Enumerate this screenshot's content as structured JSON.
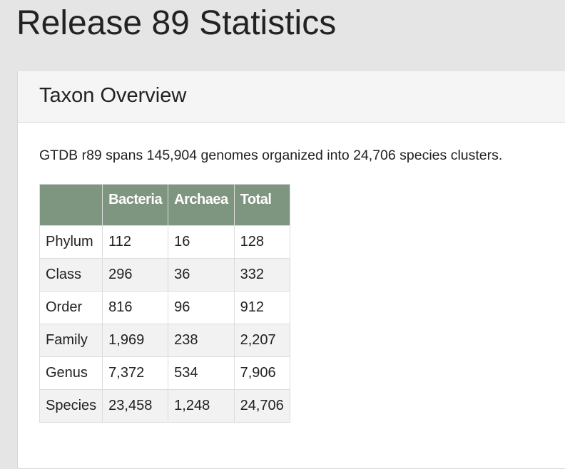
{
  "page": {
    "title": "Release 89 Statistics"
  },
  "card": {
    "title": "Taxon Overview",
    "summary": "GTDB r89 spans 145,904 genomes organized into 24,706 species clusters."
  },
  "table": {
    "headers": [
      "",
      "Bacteria",
      "Archaea",
      "Total"
    ],
    "rows": [
      [
        "Phylum",
        "112",
        "16",
        "128"
      ],
      [
        "Class",
        "296",
        "36",
        "332"
      ],
      [
        "Order",
        "816",
        "96",
        "912"
      ],
      [
        "Family",
        "1,969",
        "238",
        "2,207"
      ],
      [
        "Genus",
        "7,372",
        "534",
        "7,906"
      ],
      [
        "Species",
        "23,458",
        "1,248",
        "24,706"
      ]
    ]
  },
  "colors": {
    "page_background": "#e5e5e5",
    "header_fill": "#7e9580",
    "stripe": "#f2f2f2"
  }
}
